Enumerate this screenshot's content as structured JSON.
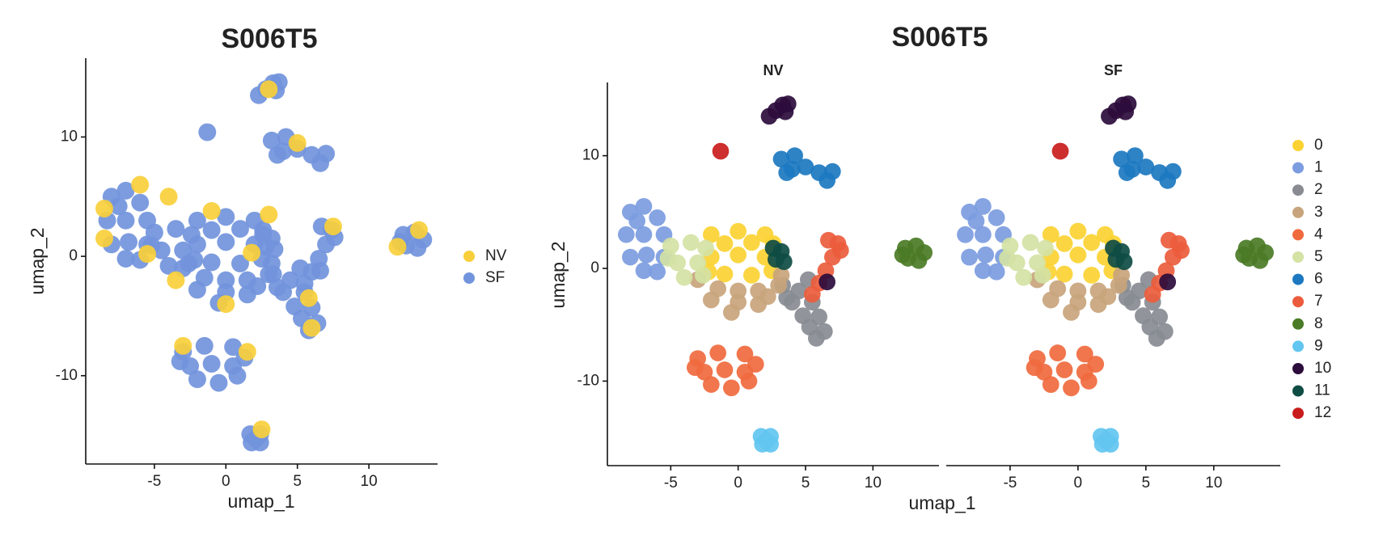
{
  "chart_data": [
    {
      "type": "scatter",
      "title": "S006T5",
      "xlabel": "umap_1",
      "ylabel": "umap_2",
      "xlim": [
        -9.8,
        14.8
      ],
      "ylim": [
        -17.4,
        16.6
      ],
      "xticks": [
        -5,
        0,
        5,
        10
      ],
      "yticks": [
        -10,
        0,
        10
      ],
      "legend": "right",
      "series": [
        {
          "name": "NV",
          "color": "#f8cf3a",
          "x": [
            -8.5,
            -6,
            -4,
            -1,
            3,
            -3.5,
            0,
            6,
            7.5,
            -3,
            1.5,
            12,
            13.5,
            3,
            5,
            -8.5,
            2.5,
            -5.5,
            1.8,
            5.8
          ],
          "y": [
            4,
            6,
            5,
            3.8,
            3.5,
            -2,
            -4,
            -6,
            2.5,
            -7.5,
            -8,
            0.8,
            2.2,
            14,
            9.5,
            1.5,
            -14.5,
            0.2,
            0.3,
            -3.5
          ]
        },
        {
          "name": "SF",
          "color": "#7294dc",
          "x": [
            -2,
            0,
            2,
            -2,
            0,
            2,
            2.6,
            -1,
            1,
            -1,
            1,
            -2.2,
            2.5,
            -8,
            -7,
            -6,
            -8.3,
            -7,
            -5.5,
            -8,
            -6.8,
            -5.5,
            -7,
            -6,
            -7.5,
            3.3,
            4.5,
            5.2,
            4,
            5.5,
            4.8,
            6,
            5.3,
            6.4,
            5.8,
            3.6,
            -3,
            -1.5,
            0,
            1.5,
            3,
            -2,
            0,
            1.5,
            -0.5,
            3.2,
            2.2,
            -3,
            -1.5,
            0.5,
            1.3,
            -2.5,
            -1,
            0.5,
            -2,
            -0.5,
            0.8,
            -3.2,
            -5,
            -3.5,
            -2.4,
            -4.5,
            -3,
            -4,
            -2.6,
            -5.2,
            3.2,
            4.2,
            5,
            4,
            6,
            7,
            6.6,
            3.6,
            6.7,
            7.4,
            7,
            6.5,
            6,
            5.5,
            7.6,
            12.4,
            13.2,
            13.8,
            12.6,
            13.4,
            12.2,
            1.7,
            2.4,
            1.8,
            2.4,
            2.1,
            2.3,
            2.8,
            3.3,
            3.7,
            3.5,
            6.6,
            2.6,
            3.2,
            2.8,
            3.4,
            -1.3
          ],
          "y": [
            3,
            3.3,
            3,
            1,
            1.2,
            1,
            2.2,
            -0.5,
            -0.6,
            2.2,
            2.3,
            -0.3,
            -0.2,
            5,
            5.5,
            4.5,
            3,
            3,
            3,
            1,
            1.2,
            1,
            -0.2,
            -0.3,
            4.2,
            -1.5,
            -2,
            -1,
            -3,
            -3,
            -4.2,
            -4.3,
            -5.2,
            -5.6,
            -6.2,
            -2.6,
            -1,
            -1.8,
            -2,
            -2,
            -1.5,
            -2.8,
            -3,
            -3.2,
            -3.9,
            -0.6,
            -2.5,
            -8,
            -7.5,
            -7.6,
            -8.5,
            -9.2,
            -9,
            -9.2,
            -10.3,
            -10.6,
            -10,
            -8.8,
            2,
            2.3,
            1.8,
            0.5,
            0.5,
            -0.8,
            -0.6,
            0.9,
            9.7,
            10,
            9,
            8.8,
            8.5,
            8.6,
            7.8,
            8.5,
            2.5,
            2.2,
            1,
            -0.2,
            -1.3,
            -2.3,
            1.6,
            1.8,
            2,
            1.4,
            0.9,
            0.7,
            1.2,
            -14.9,
            -14.9,
            -15.6,
            -15.6,
            -15.3,
            13.5,
            14,
            14.5,
            14.6,
            13.9,
            -1.2,
            1.8,
            1.5,
            0.8,
            0.6,
            10.4
          ]
        }
      ]
    },
    {
      "type": "facet-scatter",
      "title": "S006T5",
      "xlabel": "umap_1",
      "ylabel": "umap_2",
      "facets": [
        "NV",
        "SF"
      ],
      "xlim": [
        -9.7,
        14.9
      ],
      "ylim": [
        -17.5,
        16.5
      ],
      "xticks": [
        -5,
        0,
        5,
        10
      ],
      "yticks": [
        -10,
        0,
        10
      ],
      "legend": "right",
      "series": [
        {
          "name": "0",
          "color": "#fbd232",
          "panels": [
            {
              "x": [
                -2,
                0,
                2,
                -2,
                0,
                2,
                2.6,
                -1,
                1,
                -1,
                1,
                -2.2,
                2.5
              ],
              "y": [
                3,
                3.3,
                3,
                1,
                1.2,
                1,
                2.2,
                -0.5,
                -0.6,
                2.2,
                2.3,
                -0.3,
                -0.2
              ]
            },
            {
              "x": [
                -2,
                0,
                2,
                -2,
                0,
                2,
                2.6,
                -1,
                1,
                -1,
                1,
                -2.2,
                2.5
              ],
              "y": [
                3,
                3.3,
                3,
                1,
                1.2,
                1,
                2.2,
                -0.5,
                -0.6,
                2.2,
                2.3,
                -0.3,
                -0.2
              ]
            }
          ]
        },
        {
          "name": "1",
          "color": "#7c9ce0",
          "panels": [
            {
              "x": [
                -8,
                -7,
                -6,
                -8.3,
                -7,
                -5.5,
                -8,
                -6.8,
                -5.5,
                -7,
                -6,
                -7.5
              ],
              "y": [
                5,
                5.5,
                4.5,
                3,
                3,
                3,
                1,
                1.2,
                1,
                -0.2,
                -0.3,
                4.2
              ]
            },
            {
              "x": [
                -8,
                -7,
                -6,
                -8.3,
                -7,
                -5.5,
                -8,
                -6.8,
                -5.5,
                -7,
                -6,
                -7.5
              ],
              "y": [
                5,
                5.5,
                4.5,
                3,
                3,
                3,
                1,
                1.2,
                1,
                -0.2,
                -0.3,
                4.2
              ]
            }
          ]
        },
        {
          "name": "2",
          "color": "#888c92",
          "panels": [
            {
              "x": [
                3.3,
                4.5,
                5.2,
                4,
                5.5,
                4.8,
                6,
                5.3,
                6.4,
                5.8,
                3.6
              ],
              "y": [
                -1.5,
                -2,
                -1,
                -3,
                -3,
                -4.2,
                -4.3,
                -5.2,
                -5.6,
                -6.2,
                -2.6
              ]
            },
            {
              "x": [
                3.3,
                4.5,
                5.2,
                4,
                5.5,
                4.8,
                6,
                5.3,
                6.4,
                5.8,
                3.6
              ],
              "y": [
                -1.5,
                -2,
                -1,
                -3,
                -3,
                -4.2,
                -4.3,
                -5.2,
                -5.6,
                -6.2,
                -2.6
              ]
            }
          ]
        },
        {
          "name": "3",
          "color": "#c8a47c",
          "panels": [
            {
              "x": [
                -3,
                -1.5,
                0,
                1.5,
                3,
                -2,
                0,
                1.5,
                -0.5,
                3.2,
                2.2
              ],
              "y": [
                -1,
                -1.8,
                -2,
                -2,
                -1.5,
                -2.8,
                -3,
                -3.2,
                -3.9,
                -0.6,
                -2.5
              ]
            },
            {
              "x": [
                -3,
                -1.5,
                0,
                1.5,
                3,
                -2,
                0,
                1.5,
                -0.5,
                3.2,
                2.2
              ],
              "y": [
                -1,
                -1.8,
                -2,
                -2,
                -1.5,
                -2.8,
                -3,
                -3.2,
                -3.9,
                -0.6,
                -2.5
              ]
            }
          ]
        },
        {
          "name": "4",
          "color": "#f06a3e",
          "panels": [
            {
              "x": [
                -3,
                -1.5,
                0.5,
                1.3,
                -2.5,
                -1,
                0.5,
                -2,
                -0.5,
                0.8,
                -3.2
              ],
              "y": [
                -8,
                -7.5,
                -7.6,
                -8.5,
                -9.2,
                -9,
                -9.2,
                -10.3,
                -10.6,
                -10,
                -8.8
              ]
            },
            {
              "x": [
                -3,
                -1.5,
                0.5,
                1.3,
                -2.5,
                -1,
                0.5,
                -2,
                -0.5,
                0.8,
                -3.2
              ],
              "y": [
                -8,
                -7.5,
                -7.6,
                -8.5,
                -9.2,
                -9,
                -9.2,
                -10.3,
                -10.6,
                -10,
                -8.8
              ]
            }
          ]
        },
        {
          "name": "5",
          "color": "#d4e2a4",
          "panels": [
            {
              "x": [
                -5,
                -3.5,
                -2.4,
                -4.5,
                -3,
                -4,
                -2.6,
                -5.2
              ],
              "y": [
                2,
                2.3,
                1.8,
                0.5,
                0.5,
                -0.8,
                -0.6,
                0.9
              ]
            },
            {
              "x": [
                -5,
                -3.5,
                -2.4,
                -4.5,
                -3,
                -4,
                -2.6,
                -5.2
              ],
              "y": [
                2,
                2.3,
                1.8,
                0.5,
                0.5,
                -0.8,
                -0.6,
                0.9
              ]
            }
          ]
        },
        {
          "name": "6",
          "color": "#1c78c0",
          "panels": [
            {
              "x": [
                3.2,
                4.2,
                5,
                4,
                6,
                7,
                6.6,
                3.6
              ],
              "y": [
                9.7,
                10,
                9,
                8.8,
                8.5,
                8.6,
                7.8,
                8.5
              ]
            },
            {
              "x": [
                3.2,
                4.2,
                5,
                4,
                6,
                7,
                6.6,
                3.6
              ],
              "y": [
                9.7,
                10,
                9,
                8.8,
                8.5,
                8.6,
                7.8,
                8.5
              ]
            }
          ]
        },
        {
          "name": "7",
          "color": "#ec5c3c",
          "panels": [
            {
              "x": [
                6.7,
                7.4,
                7,
                6.5,
                6,
                5.5,
                7.6
              ],
              "y": [
                2.5,
                2.2,
                1,
                -0.2,
                -1.3,
                -2.3,
                1.6
              ]
            },
            {
              "x": [
                6.7,
                7.4,
                7,
                6.5,
                6,
                5.5,
                7.6
              ],
              "y": [
                2.5,
                2.2,
                1,
                -0.2,
                -1.3,
                -2.3,
                1.6
              ]
            }
          ]
        },
        {
          "name": "8",
          "color": "#4b7b26",
          "panels": [
            {
              "x": [
                12.4,
                13.2,
                13.8,
                12.6,
                13.4,
                12.2
              ],
              "y": [
                1.8,
                2,
                1.4,
                0.9,
                0.7,
                1.2
              ]
            },
            {
              "x": [
                12.4,
                13.2,
                13.8,
                12.6,
                13.4,
                12.2
              ],
              "y": [
                1.8,
                2,
                1.4,
                0.9,
                0.7,
                1.2
              ]
            }
          ]
        },
        {
          "name": "9",
          "color": "#62c6f0",
          "panels": [
            {
              "x": [
                1.7,
                2.4,
                1.8,
                2.4,
                2.1
              ],
              "y": [
                -14.9,
                -14.9,
                -15.6,
                -15.6,
                -15.3
              ]
            },
            {
              "x": [
                1.7,
                2.4,
                1.8,
                2.4,
                2.1
              ],
              "y": [
                -14.9,
                -14.9,
                -15.6,
                -15.6,
                -15.3
              ]
            }
          ]
        },
        {
          "name": "10",
          "color": "#2c0c3c",
          "panels": [
            {
              "x": [
                2.3,
                2.8,
                3.3,
                3.7,
                3.5,
                6.6
              ],
              "y": [
                13.5,
                14,
                14.5,
                14.6,
                13.9,
                -1.2
              ]
            },
            {
              "x": [
                2.3,
                2.8,
                3.3,
                3.7,
                3.5,
                6.6
              ],
              "y": [
                13.5,
                14,
                14.5,
                14.6,
                13.9,
                -1.2
              ]
            }
          ]
        },
        {
          "name": "11",
          "color": "#0e4c44",
          "panels": [
            {
              "x": [
                2.6,
                3.2,
                2.8,
                3.4
              ],
              "y": [
                1.8,
                1.5,
                0.8,
                0.6
              ]
            },
            {
              "x": [
                2.6,
                3.2,
                2.8,
                3.4
              ],
              "y": [
                1.8,
                1.5,
                0.8,
                0.6
              ]
            }
          ]
        },
        {
          "name": "12",
          "color": "#c91c1c",
          "panels": [
            {
              "x": [
                -1.3
              ],
              "y": [
                10.4
              ]
            },
            {
              "x": [
                -1.3
              ],
              "y": [
                10.4
              ]
            }
          ]
        }
      ]
    }
  ]
}
